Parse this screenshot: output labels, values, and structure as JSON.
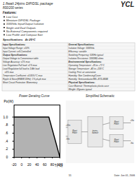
{
  "chart_data": {
    "type": "area",
    "title": "Power Derating Curve",
    "x_label": "T(°C)",
    "y_label": "Po(W)",
    "x": [
      -20,
      71,
      100
    ],
    "values": [
      1.0,
      1.0,
      0.0
    ],
    "xlim": [
      -20,
      100
    ],
    "xticks": [
      -20,
      0,
      20,
      40,
      60,
      80,
      100
    ],
    "ylim": [
      0,
      1.3
    ],
    "yticks": [
      0,
      {
        "value": 0.2,
        "label": ".2"
      },
      {
        "value": 0.4,
        "label": ".4"
      },
      {
        "value": 0.6,
        "label": ".6"
      },
      {
        "value": 0.8,
        "label": ".8"
      },
      {
        "value": 1.0,
        "label": "1.0"
      }
    ],
    "grid": false,
    "annotations": [
      [
        "1.8watt 24pins DIP/DSL package",
        "YCL",
        "800/200 series"
      ],
      [
        "Features:",
        "Low Cost",
        "Miniature DIP/DSL Package",
        "1000Vdc Input/Output Isolation",
        "Single and Dual Outputs",
        "No External Components required",
        "Low Profile and Compact Size"
      ],
      [
        "Specifications   At 25°C"
      ],
      [
        "Input Specifications:",
        "Input Voltage Range: ±10%",
        "Input Current: self-Controlled",
        "Output Specifications:",
        "Output Voltage to Convenience table",
        "Voltage Accuracy: ±1% max",
        "Line Regulation Full load: ±1% max",
        "Load Regulation full load to 1/4th load",
        "   ±5% max",
        "Temperature Coefficient: ±0.05%/°C max",
        "Ripple & Noise(ENBW 20Hz): 1% pk-pk max",
        "Short Circuit Protection: Momentary"
      ],
      [
        "General Specifications:",
        "Isolation Voltage: 1000Vdc",
        "Efficiency: variable",
        "Switching Frequency: 50KHz typical",
        "Isolation Resistance: 1000MΩ ohms",
        "Environmental Specifications:",
        "Operating Temperature: -25 to +71°C",
        "Storage Temperature: -40 to +105°C",
        "Cooling: Free air convection",
        "Humidity: Non Condensing/Cover",
        "Humidity: Semiconductor/MIL-STD-883B",
        "Physical Specifications:",
        "Case Material: Thermoplastic plastic case",
        "Weight: 22grams typical"
      ],
      [
        "Simplified Schematic",
        "+Vin",
        "-Vin",
        "Rect\nFilter",
        "trans-\nformer",
        "Rect\nFilter",
        "Rect\nFilter",
        "+Vo",
        "-Vo"
      ],
      [
        "11",
        "Date: Jun 01, 2006"
      ]
    ]
  }
}
